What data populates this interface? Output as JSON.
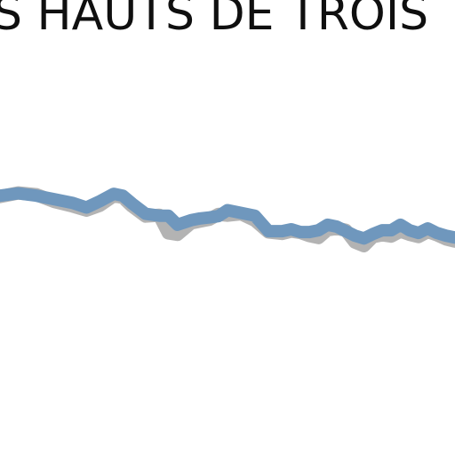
{
  "chart_data": {
    "type": "line",
    "title": "S HAUTS DE TROIS",
    "xlabel": "",
    "ylabel": "",
    "grid": false,
    "legend": "none",
    "xlim": [
      0,
      100
    ],
    "ylim": [
      0,
      100
    ],
    "x": [
      0,
      4,
      8,
      12,
      16,
      19,
      22,
      25,
      27,
      29,
      32,
      35,
      37,
      39,
      42,
      44,
      46,
      48,
      50,
      53,
      56,
      59,
      62,
      64,
      66,
      68,
      70,
      72,
      74,
      76,
      78,
      80,
      82,
      84,
      86,
      88,
      90,
      92,
      94,
      96,
      98,
      100
    ],
    "series": [
      {
        "color": "#b3b3b3",
        "values": [
          56.8,
          57.6,
          57.2,
          55.7,
          54.7,
          53.8,
          54.9,
          57.0,
          56.6,
          54.7,
          52.5,
          52.7,
          48.8,
          48.5,
          51.0,
          51.4,
          51.8,
          52.9,
          52.7,
          53.0,
          51.6,
          49.0,
          48.7,
          49.2,
          48.9,
          48.2,
          47.8,
          49.5,
          49.8,
          49.4,
          46.8,
          46.0,
          48.0,
          48.4,
          48.1,
          49.2,
          48.5,
          48.0,
          49.1,
          48.4,
          47.5,
          47.0
        ]
      },
      {
        "color": "#6f97bd",
        "values": [
          57.0,
          57.5,
          57.0,
          56.2,
          55.4,
          54.4,
          55.8,
          57.4,
          57.0,
          55.3,
          53.0,
          52.6,
          52.6,
          50.6,
          51.6,
          52.0,
          52.2,
          52.5,
          53.8,
          53.2,
          52.6,
          49.2,
          49.2,
          49.6,
          49.0,
          49.0,
          49.4,
          50.6,
          50.2,
          49.2,
          48.2,
          47.6,
          48.6,
          49.4,
          49.4,
          50.6,
          49.4,
          48.8,
          49.8,
          48.8,
          48.2,
          47.8
        ]
      }
    ]
  }
}
